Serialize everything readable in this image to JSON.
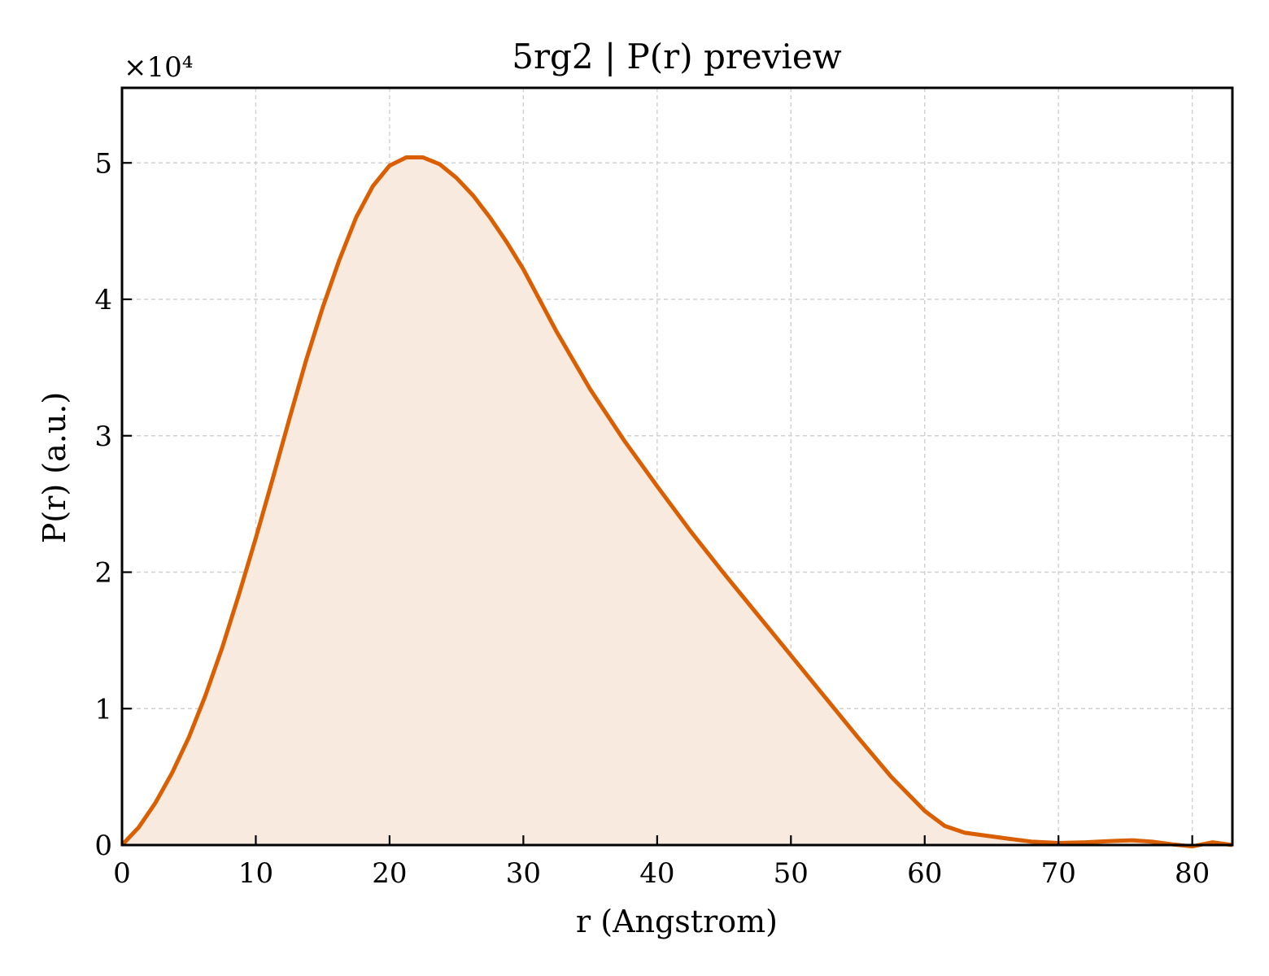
{
  "chart_data": {
    "type": "area",
    "title": "5rg2 | P(r) preview",
    "xlabel": "r (Angstrom)",
    "ylabel": "P(r) (a.u.)",
    "y_multiplier_label": "×10⁴",
    "y_multiplier": 10000,
    "xlim": [
      0,
      83
    ],
    "ylim": [
      0,
      55500
    ],
    "x_ticks": [
      0,
      10,
      20,
      30,
      40,
      50,
      60,
      70,
      80
    ],
    "y_ticks": [
      0,
      10000,
      20000,
      30000,
      40000,
      50000
    ],
    "y_tick_labels": [
      "0",
      "1",
      "2",
      "3",
      "4",
      "5"
    ],
    "grid": true,
    "line_color": "#d95f02",
    "fill_color": "#f9eadf",
    "series": [
      {
        "x": [
          0,
          1.25,
          2.5,
          3.75,
          5,
          6.25,
          7.5,
          8.75,
          10,
          11.25,
          12.5,
          13.75,
          15,
          16.25,
          17.5,
          18.75,
          20,
          21.25,
          22.5,
          23.75,
          25,
          26.25,
          27.5,
          28.75,
          30,
          32.5,
          35,
          37.5,
          40,
          42.5,
          45,
          47.5,
          50,
          52.5,
          55,
          57.5,
          60,
          61.5,
          63,
          64.5,
          66,
          68,
          70,
          72,
          74,
          75.5,
          77,
          78.5,
          80,
          81.5,
          83
        ],
        "y": [
          0,
          1300,
          3100,
          5300,
          7900,
          11000,
          14500,
          18400,
          22500,
          26800,
          31200,
          35500,
          39400,
          42900,
          46000,
          48300,
          49800,
          50400,
          50400,
          49900,
          48900,
          47600,
          46000,
          44200,
          42200,
          37600,
          33400,
          29700,
          26300,
          23000,
          19900,
          16900,
          13900,
          10900,
          7900,
          5000,
          2500,
          1400,
          900,
          700,
          500,
          250,
          150,
          200,
          300,
          350,
          250,
          50,
          -100,
          200,
          0
        ]
      }
    ]
  }
}
